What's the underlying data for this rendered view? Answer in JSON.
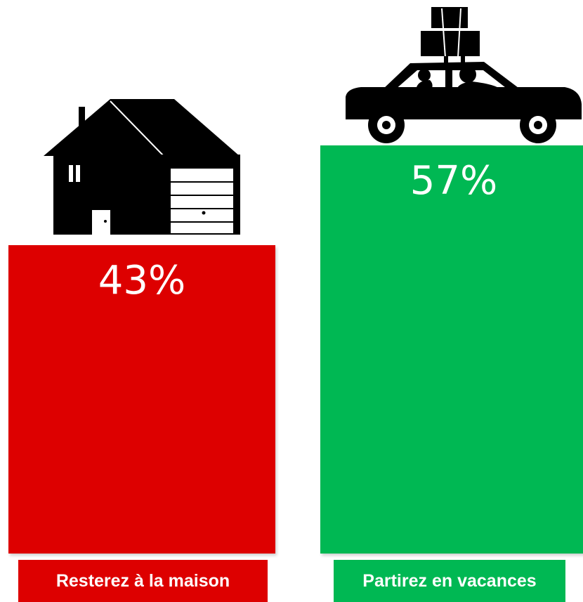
{
  "chart_data": {
    "type": "bar",
    "categories": [
      "Resterez à la maison",
      "Partirez en vacances"
    ],
    "values": [
      43,
      57
    ],
    "value_labels": [
      "43%",
      "57%"
    ],
    "ylim": [
      0,
      100
    ],
    "grid": false,
    "colors": [
      "#dd0000",
      "#00b853"
    ],
    "icons": [
      "house-icon",
      "car-icon"
    ]
  }
}
